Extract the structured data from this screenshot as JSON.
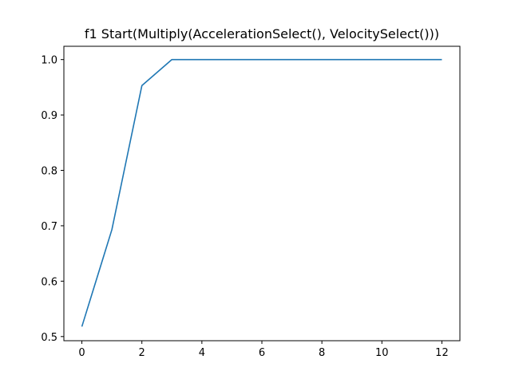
{
  "chart_data": {
    "type": "line",
    "title": "f1 Start(Multiply(AccelerationSelect(), VelocitySelect()))",
    "xlabel": "",
    "ylabel": "",
    "xlim": [
      -0.6,
      12.6
    ],
    "ylim": [
      0.4925,
      1.024
    ],
    "x_ticks": [
      0,
      2,
      4,
      6,
      8,
      10,
      12
    ],
    "y_ticks": [
      0.5,
      0.6,
      0.7,
      0.8,
      0.9,
      1.0
    ],
    "x_tick_labels": [
      "0",
      "2",
      "4",
      "6",
      "8",
      "10",
      "12"
    ],
    "y_tick_labels": [
      "0.5",
      "0.6",
      "0.7",
      "0.8",
      "0.9",
      "1.0"
    ],
    "grid": false,
    "series": [
      {
        "color": "#1f77b4",
        "x": [
          0,
          1,
          2,
          3,
          4,
          5,
          6,
          7,
          8,
          9,
          10,
          11,
          12
        ],
        "y": [
          0.518,
          0.693,
          0.953,
          1.0,
          1.0,
          1.0,
          1.0,
          1.0,
          1.0,
          1.0,
          1.0,
          1.0,
          1.0
        ]
      }
    ]
  }
}
